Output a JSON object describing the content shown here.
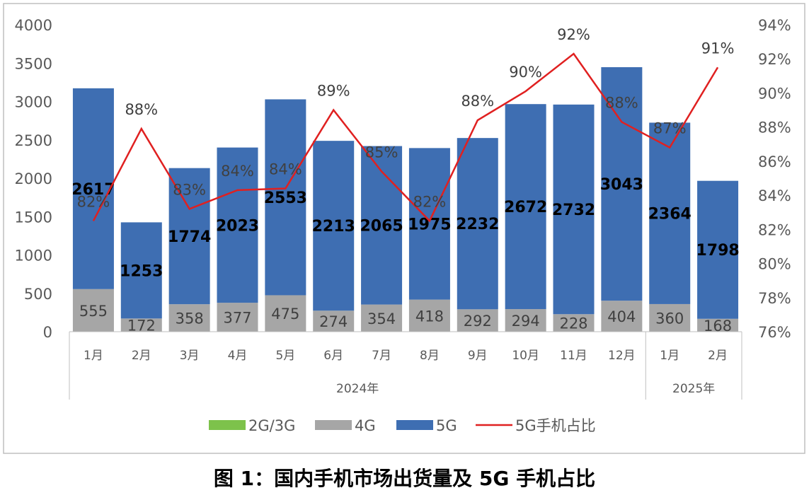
{
  "figure_caption": "图 1：国内手机市场出货量及 5G 手机占比",
  "colors": {
    "2g3g": "#7DC24B",
    "4g": "#A6A6A6",
    "5g": "#3E6EB2",
    "ratio_line": "#E02020",
    "axis_text": "#595959",
    "grid": "#D9D9D9"
  },
  "chart_data": {
    "type": "bar",
    "stacked": true,
    "categories": [
      "1月",
      "2月",
      "3月",
      "4月",
      "5月",
      "6月",
      "7月",
      "8月",
      "9月",
      "10月",
      "11月",
      "12月",
      "1月",
      "2月"
    ],
    "category_groups": [
      {
        "label": "2024年",
        "count": 12
      },
      {
        "label": "2025年",
        "count": 2
      }
    ],
    "series": [
      {
        "name": "2G/3G",
        "values": [
          0,
          0,
          0,
          0,
          0,
          0,
          0,
          0,
          0,
          0,
          0,
          0,
          0,
          0
        ]
      },
      {
        "name": "4G",
        "values": [
          555,
          172,
          358,
          377,
          475,
          274,
          354,
          418,
          292,
          294,
          228,
          404,
          360,
          168
        ]
      },
      {
        "name": "5G",
        "values": [
          2617,
          1253,
          1774,
          2023,
          2553,
          2213,
          2065,
          1975,
          2232,
          2672,
          2732,
          3043,
          2364,
          1798
        ]
      }
    ],
    "line_series": {
      "name": "5G手机占比",
      "axis": "right",
      "values": [
        82.5,
        87.9,
        83.2,
        84.3,
        84.4,
        89.0,
        85.4,
        82.5,
        88.4,
        90.1,
        92.3,
        88.3,
        86.8,
        91.5
      ],
      "labels": [
        "82%",
        "88%",
        "83%",
        "84%",
        "84%",
        "89%",
        "85%",
        "82%",
        "88%",
        "90%",
        "92%",
        "88%",
        "87%",
        "91%"
      ]
    },
    "y_left": {
      "min": 0,
      "max": 4000,
      "ticks": [
        0,
        500,
        1000,
        1500,
        2000,
        2500,
        3000,
        3500,
        4000
      ]
    },
    "y_right": {
      "min": 76,
      "max": 94,
      "ticks": [
        "76%",
        "78%",
        "80%",
        "82%",
        "84%",
        "86%",
        "88%",
        "90%",
        "92%",
        "94%"
      ]
    },
    "legend_position": "bottom",
    "gridlines": false
  }
}
